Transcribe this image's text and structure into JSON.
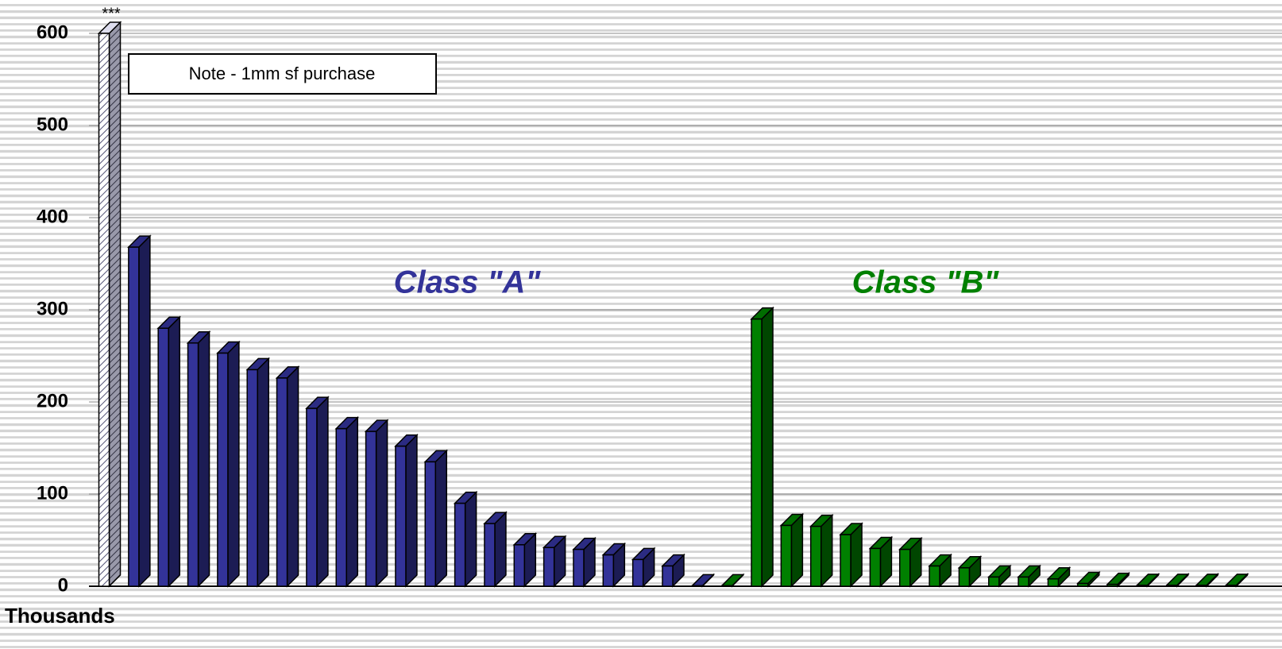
{
  "chart_data": {
    "type": "bar3d",
    "categories": [
      null,
      null,
      null,
      null,
      null,
      null,
      null,
      null,
      null,
      null,
      null,
      null,
      null,
      null,
      null,
      null,
      null,
      null,
      null,
      null,
      null,
      null,
      null,
      null,
      null,
      null,
      null,
      null,
      null,
      null,
      null,
      null,
      null,
      null,
      null,
      null,
      null,
      null,
      null
    ],
    "series": [
      {
        "color": "#c8c8e0",
        "pattern": "hatched",
        "values": [
          600,
          null,
          null,
          null,
          null,
          null,
          null,
          null,
          null,
          null,
          null,
          null,
          null,
          null,
          null,
          null,
          null,
          null,
          null,
          null,
          null,
          null,
          null,
          null,
          null,
          null,
          null,
          null,
          null,
          null,
          null,
          null,
          null,
          null,
          null,
          null,
          null,
          null,
          null
        ]
      },
      {
        "name": "Class \"A\"",
        "color": "#333399",
        "values": [
          null,
          368,
          280,
          264,
          253,
          235,
          226,
          193,
          171,
          168,
          152,
          135,
          90,
          68,
          45,
          42,
          40,
          34,
          29,
          22,
          0.5,
          null,
          null,
          null,
          null,
          null,
          null,
          null,
          null,
          null,
          null,
          null,
          null,
          null,
          null,
          null,
          null,
          null,
          null
        ]
      },
      {
        "name": "Class \"B\"",
        "color": "#008000",
        "values": [
          null,
          null,
          null,
          null,
          null,
          null,
          null,
          null,
          null,
          null,
          null,
          null,
          null,
          null,
          null,
          null,
          null,
          null,
          null,
          null,
          null,
          0.5,
          290,
          66,
          65,
          56,
          41,
          40,
          22,
          20,
          10,
          10,
          8,
          3,
          2,
          1,
          1,
          1,
          1
        ]
      }
    ],
    "ylim": [
      0,
      600
    ],
    "yticks": [
      0,
      100,
      200,
      300,
      400,
      500,
      600
    ],
    "grid": true,
    "y_unit_label": "Thousands",
    "annotations": [
      "***",
      "Note - 1mm sf purchase"
    ]
  }
}
